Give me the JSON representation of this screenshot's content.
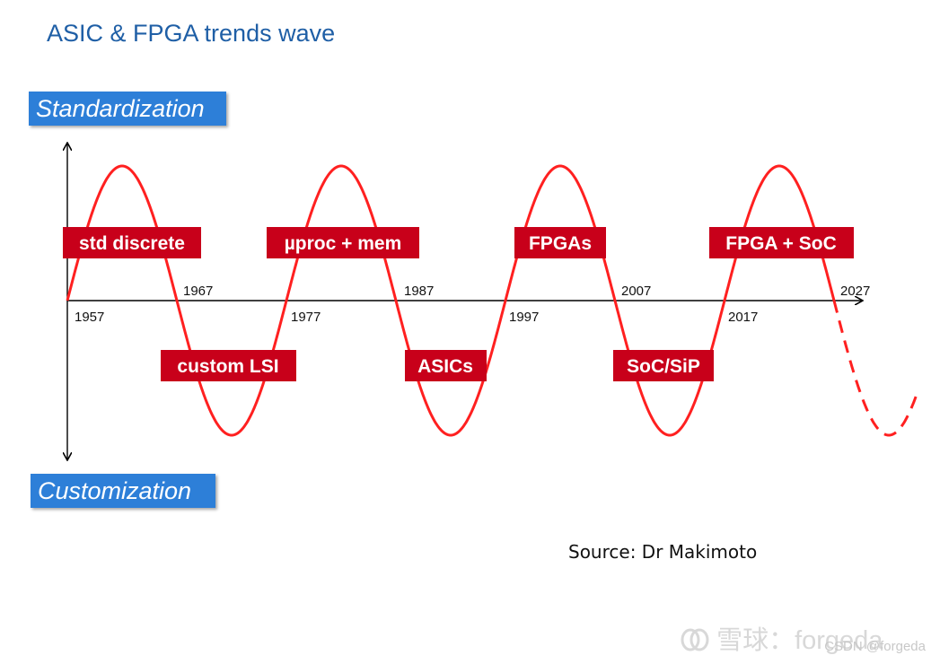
{
  "title": "ASIC & FPGA trends wave",
  "axis_labels": {
    "top": "Standardization",
    "bottom": "Customization"
  },
  "years_above": [
    "1967",
    "1987",
    "2007",
    "2027"
  ],
  "years_below": [
    "1957",
    "1977",
    "1997",
    "2017"
  ],
  "standard_phases": [
    "std discrete",
    "µproc + mem",
    "FPGAs",
    "FPGA + SoC"
  ],
  "custom_phases": [
    "custom LSI",
    "ASICs",
    "SoC/SiP"
  ],
  "source": "Source: Dr Makimoto",
  "watermarks": {
    "main": "雪球：forgeda",
    "csdn": "CSDN @forgeda"
  },
  "colors": {
    "wave": "#ff2020",
    "box": "#c8001a",
    "tag": "#2d7fd8",
    "title": "#1f5fa6"
  }
}
